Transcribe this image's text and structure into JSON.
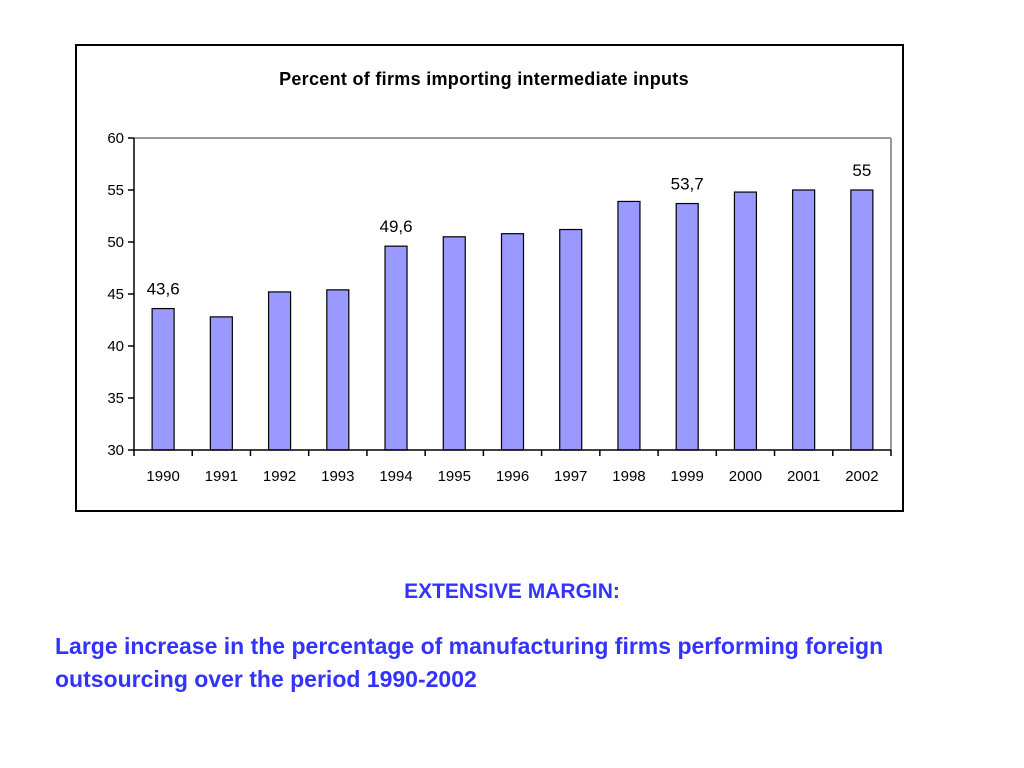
{
  "chart_data": {
    "type": "bar",
    "title": "Percent of firms importing intermediate inputs",
    "categories": [
      "1990",
      "1991",
      "1992",
      "1993",
      "1994",
      "1995",
      "1996",
      "1997",
      "1998",
      "1999",
      "2000",
      "2001",
      "2002"
    ],
    "values": [
      43.6,
      42.8,
      45.2,
      45.4,
      49.6,
      50.5,
      50.8,
      51.2,
      53.9,
      53.7,
      54.8,
      55.0,
      55.0
    ],
    "data_labels": [
      {
        "index": 0,
        "text": "43,6"
      },
      {
        "index": 4,
        "text": "49,6"
      },
      {
        "index": 9,
        "text": "53,7"
      },
      {
        "index": 12,
        "text": "55"
      }
    ],
    "yticks": [
      "30",
      "35",
      "40",
      "45",
      "50",
      "55",
      "60"
    ],
    "ylim": [
      30,
      60
    ],
    "xlabel": "",
    "ylabel": "",
    "grid": false,
    "legend": "none",
    "bar_color": "#9999ff",
    "bar_border": "#000000"
  },
  "slide": {
    "heading": "EXTENSIVE MARGIN:",
    "text": "Large increase in the percentage of manufacturing firms performing foreign outsourcing over the period 1990-2002",
    "text_color": "#3333ff"
  }
}
